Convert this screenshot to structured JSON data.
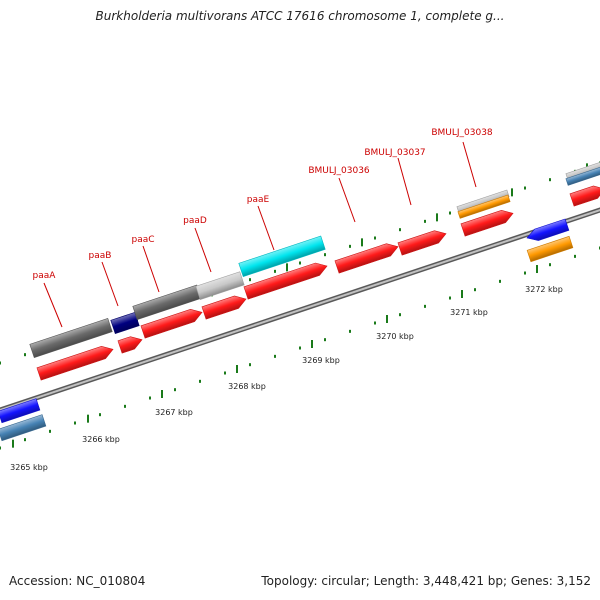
{
  "title": "Burkholderia multivorans ATCC 17616 chromosome 1, complete g...",
  "accession": "Accession: NC_010804",
  "summary": "Topology: circular; Length: 3,448,421 bp; Genes: 3,152",
  "colors": {
    "backbone": "#8a8a8a",
    "tick": "#1a7a1a",
    "gene_label": "#cc0000",
    "red": "#ff1a1a",
    "gray": "#6a6a6a",
    "lightgray": "#c8c8c8",
    "navy": "#000080",
    "cyan": "#00e5ee",
    "blue": "#1414ff",
    "steelblue": "#4682b4",
    "orange": "#ff9900"
  },
  "kbp_labels": [
    {
      "text": "3265 kbp"
    },
    {
      "text": "3266 kbp"
    },
    {
      "text": "3267 kbp"
    },
    {
      "text": "3268 kbp"
    },
    {
      "text": "3269 kbp"
    },
    {
      "text": "3270 kbp"
    },
    {
      "text": "3271 kbp"
    },
    {
      "text": "3272 kbp"
    }
  ],
  "gene_labels": [
    {
      "text": "paaA"
    },
    {
      "text": "paaB"
    },
    {
      "text": "paaC"
    },
    {
      "text": "paaD"
    },
    {
      "text": "paaE"
    },
    {
      "text": "BMULJ_03036"
    },
    {
      "text": "BMULJ_03037"
    },
    {
      "text": "BMULJ_03038"
    }
  ]
}
